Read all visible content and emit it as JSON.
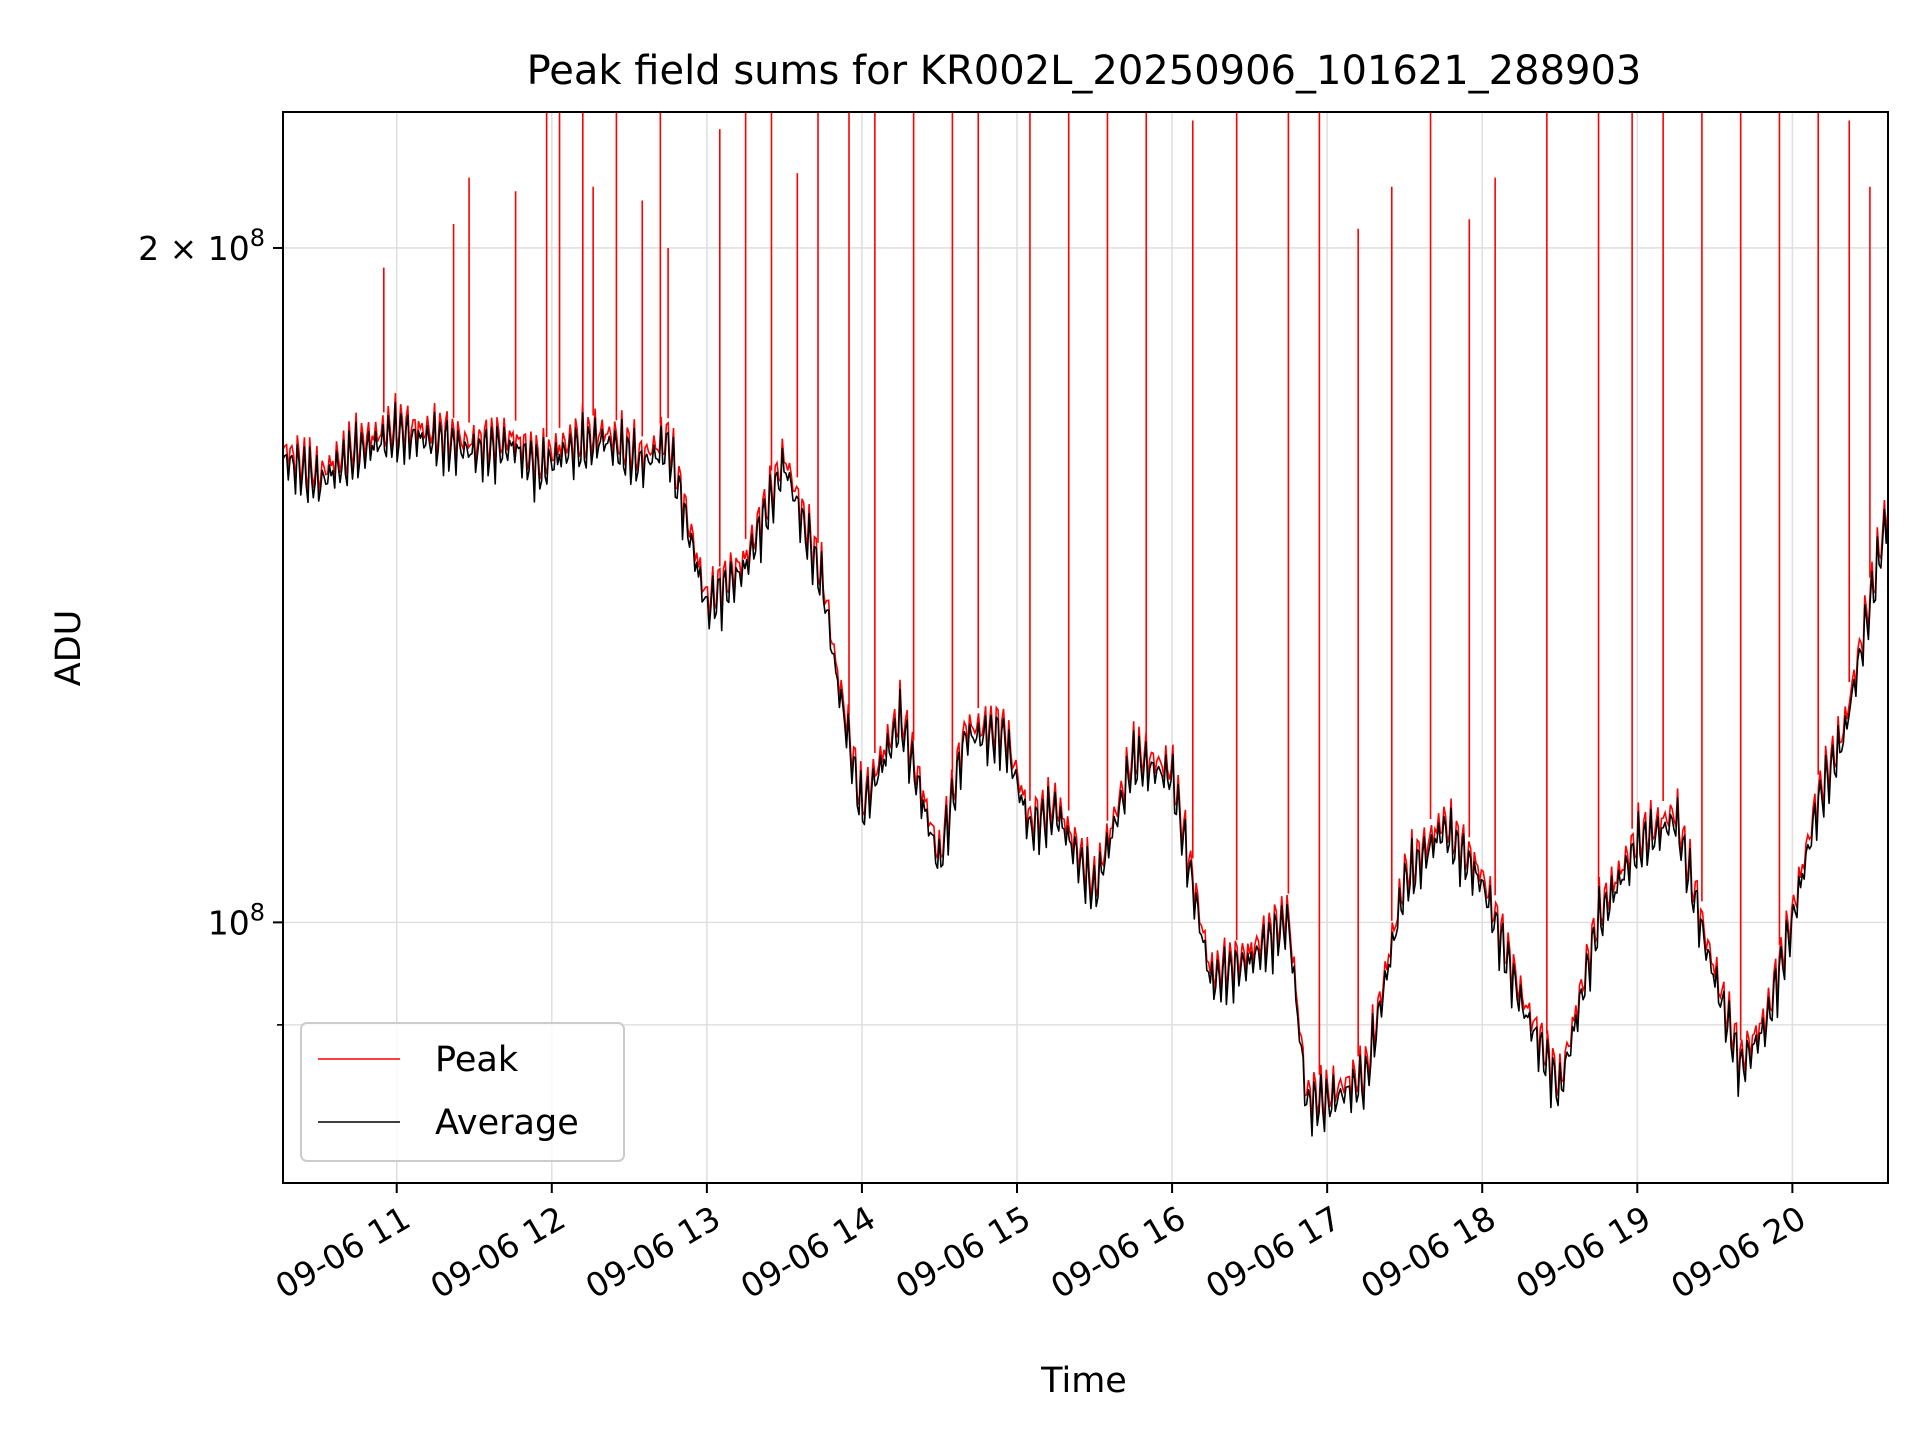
{
  "chart_data": {
    "type": "line",
    "title": "Peak field sums for KR002L_20250906_101621_288903",
    "xlabel": "Time",
    "ylabel": "ADU",
    "x_range": [
      "09-06 10:16",
      "09-06 20:37"
    ],
    "y_scale": "log",
    "ylim": [
      76500000,
      230000000
    ],
    "x_ticks": [
      "09-06 11",
      "09-06 12",
      "09-06 13",
      "09-06 14",
      "09-06 15",
      "09-06 16",
      "09-06 17",
      "09-06 18",
      "09-06 19",
      "09-06 20"
    ],
    "y_ticks": [
      {
        "value": 200000000,
        "label": "2 × 10",
        "exp": "8"
      },
      {
        "value": 100000000,
        "label": "10",
        "exp": "8"
      }
    ],
    "y_minor_ticks": [
      90000000
    ],
    "grid": true,
    "legend_position": "lower-left",
    "series": [
      {
        "name": "Average",
        "color": "#000000",
        "time": [
          "09-06 10:16",
          "09-06 10:30",
          "09-06 10:45",
          "09-06 11:00",
          "09-06 11:15",
          "09-06 11:30",
          "09-06 11:45",
          "09-06 11:55",
          "09-06 12:05",
          "09-06 12:20",
          "09-06 12:35",
          "09-06 12:45",
          "09-06 12:55",
          "09-06 13:00",
          "09-06 13:15",
          "09-06 13:30",
          "09-06 13:45",
          "09-06 13:50",
          "09-06 14:00",
          "09-06 14:15",
          "09-06 14:30",
          "09-06 14:40",
          "09-06 14:55",
          "09-06 15:05",
          "09-06 15:15",
          "09-06 15:30",
          "09-06 15:45",
          "09-06 16:00",
          "09-06 16:15",
          "09-06 16:30",
          "09-06 16:45",
          "09-06 16:52",
          "09-06 17:00",
          "09-06 17:15",
          "09-06 17:30",
          "09-06 17:45",
          "09-06 18:00",
          "09-06 18:15",
          "09-06 18:30",
          "09-06 18:45",
          "09-06 19:00",
          "09-06 19:15",
          "09-06 19:27",
          "09-06 19:40",
          "09-06 19:50",
          "09-06 20:00",
          "09-06 20:10",
          "09-06 20:20",
          "09-06 20:37"
        ],
        "values": [
          161000000,
          157000000,
          162000000,
          165000000,
          164000000,
          162000000,
          163000000,
          159000000,
          162000000,
          164000000,
          160000000,
          163000000,
          146000000,
          138000000,
          144000000,
          160000000,
          141000000,
          129000000,
          112000000,
          123000000,
          106000000,
          121000000,
          121000000,
          110000000,
          112000000,
          103000000,
          118000000,
          116000000,
          94000000,
          96000000,
          100000000,
          83000000,
          83000000,
          85000000,
          104000000,
          110000000,
          104000000,
          92000000,
          84000000,
          100000000,
          108000000,
          111000000,
          97000000,
          86000000,
          90000000,
          100000000,
          113000000,
          121000000,
          152000000
        ]
      },
      {
        "name": "Peak",
        "color": "#ff0000",
        "time": [
          "09-06 10:55",
          "09-06 11:22",
          "09-06 11:28",
          "09-06 11:46",
          "09-06 11:58",
          "09-06 12:03",
          "09-06 12:12",
          "09-06 12:16",
          "09-06 12:25",
          "09-06 12:35",
          "09-06 12:42",
          "09-06 12:45",
          "09-06 13:05",
          "09-06 13:15",
          "09-06 13:25",
          "09-06 13:35",
          "09-06 13:43",
          "09-06 13:55",
          "09-06 14:05",
          "09-06 14:20",
          "09-06 14:35",
          "09-06 14:45",
          "09-06 15:05",
          "09-06 15:20",
          "09-06 15:35",
          "09-06 15:50",
          "09-06 16:08",
          "09-06 16:25",
          "09-06 16:45",
          "09-06 16:57",
          "09-06 17:12",
          "09-06 17:25",
          "09-06 17:40",
          "09-06 17:55",
          "09-06 18:05",
          "09-06 18:25",
          "09-06 18:45",
          "09-06 18:58",
          "09-06 19:10",
          "09-06 19:25",
          "09-06 19:40",
          "09-06 19:55",
          "09-06 20:10",
          "09-06 20:22",
          "09-06 20:30"
        ],
        "values": [
          196000000,
          205000000,
          215000000,
          212000000,
          240000000,
          240000000,
          240000000,
          213000000,
          240000000,
          210000000,
          240000000,
          200000000,
          226000000,
          240000000,
          240000000,
          216000000,
          240000000,
          240000000,
          240000000,
          240000000,
          240000000,
          240000000,
          240000000,
          240000000,
          240000000,
          240000000,
          228000000,
          240000000,
          240000000,
          240000000,
          204000000,
          213000000,
          240000000,
          206000000,
          215000000,
          240000000,
          240000000,
          240000000,
          240000000,
          240000000,
          240000000,
          240000000,
          240000000,
          228000000,
          213000000
        ]
      }
    ]
  }
}
